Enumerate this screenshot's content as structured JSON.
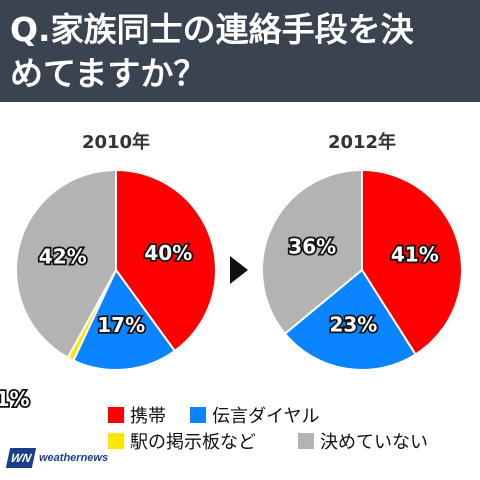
{
  "header": {
    "line1": "Q.家族同士の連絡手段を決",
    "line2": "めてますか？"
  },
  "legend": {
    "items": [
      {
        "label": "携帯",
        "color": "#ff0000"
      },
      {
        "label": "伝言ダイヤル",
        "color": "#0a84ff"
      },
      {
        "label": "駅の掲示板など",
        "color": "#ffe600"
      },
      {
        "label": "決めていない",
        "color": "#b3b3b3"
      }
    ]
  },
  "logo": {
    "mark": "WN",
    "text": "weathernews"
  },
  "arrow_icon": "right-triangle-icon",
  "chart_data": [
    {
      "type": "pie",
      "title": "2010年",
      "slices": [
        {
          "category": "携帯",
          "value": 40,
          "label": "40%",
          "color": "#ff0000"
        },
        {
          "category": "伝言ダイヤル",
          "value": 17,
          "label": "17%",
          "color": "#0a84ff"
        },
        {
          "category": "駅の掲示板など",
          "value": 1,
          "label": "1%",
          "color": "#ffe600"
        },
        {
          "category": "決めていない",
          "value": 42,
          "label": "42%",
          "color": "#b3b3b3"
        }
      ]
    },
    {
      "type": "pie",
      "title": "2012年",
      "slices": [
        {
          "category": "携帯",
          "value": 41,
          "label": "41%",
          "color": "#ff0000"
        },
        {
          "category": "伝言ダイヤル",
          "value": 23,
          "label": "23%",
          "color": "#0a84ff"
        },
        {
          "category": "決めていない",
          "value": 36,
          "label": "36%",
          "color": "#b3b3b3"
        }
      ]
    }
  ]
}
